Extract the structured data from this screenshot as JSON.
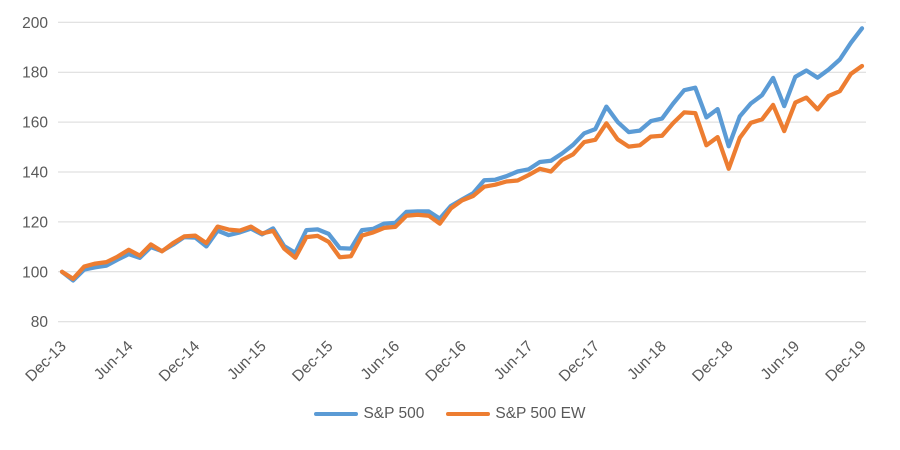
{
  "chart_data": {
    "type": "line",
    "title": "",
    "xlabel": "",
    "ylabel": "",
    "x_tick_labels": [
      "Dec-13",
      "Jun-14",
      "Dec-14",
      "Jun-15",
      "Dec-15",
      "Jun-16",
      "Dec-16",
      "Jun-17",
      "Dec-17",
      "Jun-18",
      "Dec-18",
      "Jun-19",
      "Dec-19"
    ],
    "points_per_x_tick": 6,
    "y_ticks": [
      80,
      100,
      120,
      140,
      160,
      180,
      200
    ],
    "ylim": [
      80,
      200
    ],
    "grid": "horizontal",
    "gridline_color": "#D9D9D9",
    "label_color": "#595959",
    "legend_position": "bottom",
    "series": [
      {
        "name": "S&P 500",
        "color": "#5B9BD5",
        "values": [
          100,
          96.5,
          100.9,
          101.8,
          102.5,
          104.9,
          107.1,
          105.6,
          109.9,
          108.3,
          110.9,
          113.9,
          113.7,
          110.2,
          116.5,
          114.7,
          115.8,
          117.3,
          115.0,
          117.4,
          110.3,
          107.6,
          116.7,
          117.0,
          115.2,
          109.5,
          109.3,
          116.7,
          117.2,
          119.3,
          119.6,
          124.0,
          124.2,
          124.2,
          121.3,
          126.4,
          129.0,
          131.5,
          136.7,
          136.9,
          138.3,
          140.2,
          141.1,
          144.0,
          144.5,
          147.4,
          150.9,
          155.5,
          157.2,
          166.2,
          160.1,
          156.0,
          156.6,
          160.4,
          161.4,
          167.4,
          172.8,
          173.8,
          161.9,
          165.2,
          150.3,
          162.3,
          167.5,
          170.8,
          177.7,
          166.4,
          178.1,
          180.7,
          177.8,
          181.1,
          185.1,
          191.8,
          197.6
        ]
      },
      {
        "name": "S&P 500 EW",
        "color": "#ED7D31",
        "values": [
          100,
          97.2,
          102.1,
          103.3,
          103.9,
          106.1,
          108.8,
          106.5,
          111.0,
          108.2,
          111.5,
          114.2,
          114.5,
          111.5,
          118.1,
          116.9,
          116.5,
          118.1,
          115.4,
          116.4,
          109.3,
          105.6,
          113.9,
          114.4,
          112.0,
          105.8,
          106.2,
          114.5,
          115.8,
          117.6,
          118.0,
          122.5,
          122.9,
          122.5,
          119.3,
          125.4,
          128.6,
          130.4,
          134.1,
          134.9,
          136.2,
          136.6,
          138.8,
          141.3,
          140.2,
          144.8,
          147.1,
          152.0,
          152.9,
          159.5,
          153.1,
          150.2,
          150.7,
          154.2,
          154.5,
          159.6,
          163.9,
          163.6,
          150.7,
          154.0,
          141.3,
          153.7,
          159.7,
          161.1,
          166.9,
          156.4,
          167.8,
          169.8,
          165.1,
          170.5,
          172.4,
          179.3,
          182.5
        ]
      }
    ]
  }
}
